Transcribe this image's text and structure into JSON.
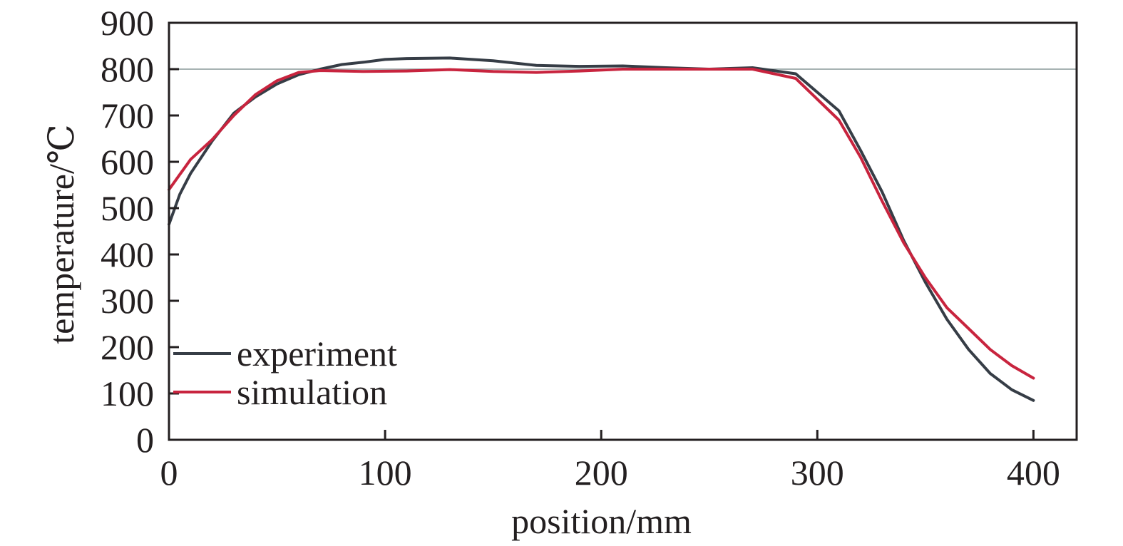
{
  "chart_data": {
    "type": "line",
    "title": "",
    "xlabel": "position/mm",
    "ylabel": "temperature/℃",
    "xlim": [
      0,
      420
    ],
    "ylim": [
      0,
      900
    ],
    "xticks": [
      0,
      100,
      200,
      300,
      400
    ],
    "yticks": [
      0,
      100,
      200,
      300,
      400,
      500,
      600,
      700,
      800,
      900
    ],
    "reference_line": {
      "y": 800,
      "color": "#8a9a9a"
    },
    "grid": false,
    "legend_position": "bottom-left",
    "series": [
      {
        "name": "experiment",
        "color": "#363d46",
        "x": [
          0,
          5,
          10,
          20,
          30,
          40,
          50,
          60,
          70,
          80,
          90,
          100,
          110,
          130,
          150,
          170,
          190,
          210,
          230,
          250,
          270,
          290,
          310,
          320,
          330,
          340,
          350,
          360,
          370,
          380,
          390,
          400
        ],
        "y": [
          465,
          530,
          575,
          645,
          705,
          740,
          768,
          788,
          800,
          810,
          815,
          821,
          823,
          824,
          818,
          808,
          806,
          807,
          803,
          800,
          803,
          790,
          710,
          625,
          535,
          430,
          340,
          260,
          195,
          143,
          108,
          85
        ]
      },
      {
        "name": "simulation",
        "color": "#c8243e",
        "x": [
          0,
          10,
          20,
          30,
          40,
          50,
          60,
          70,
          90,
          110,
          130,
          150,
          170,
          190,
          210,
          230,
          250,
          270,
          290,
          310,
          320,
          330,
          340,
          350,
          360,
          370,
          380,
          390,
          400
        ],
        "y": [
          540,
          605,
          648,
          700,
          745,
          775,
          793,
          797,
          795,
          796,
          799,
          795,
          793,
          796,
          800,
          800,
          800,
          800,
          780,
          690,
          610,
          515,
          425,
          350,
          285,
          240,
          195,
          160,
          133
        ]
      }
    ]
  }
}
